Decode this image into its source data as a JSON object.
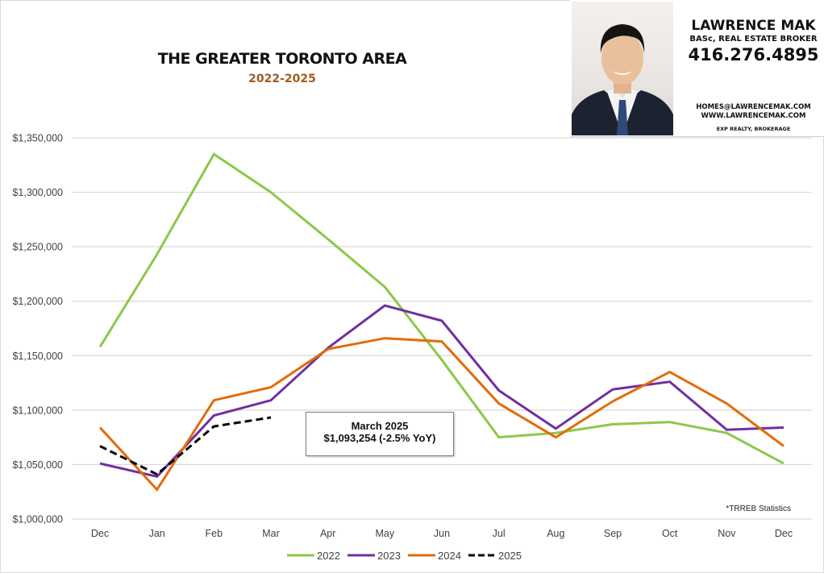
{
  "header": {
    "title": "THE GREATER TORONTO AREA",
    "subtitle": "2022-2025"
  },
  "agent_card": {
    "photo": "agent-headshot",
    "name": "LAWRENCE MAK",
    "credentials": "BASc, REAL ESTATE BROKER",
    "phone": "416.276.4895",
    "email": "HOMES@LAWRENCEMAK.COM",
    "website": "WWW.LAWRENCEMAK.COM",
    "brokerage": "EXP REALTY, BROKERAGE"
  },
  "annotation": {
    "line1": "March 2025",
    "line2": "$1,093,254 (-2.5% YoY)"
  },
  "source_note": "*TRREB Statistics",
  "chart_data": {
    "type": "line",
    "title": "THE GREATER TORONTO AREA",
    "subtitle": "2022-2025",
    "xlabel": "",
    "ylabel": "",
    "categories": [
      "Dec",
      "Jan",
      "Feb",
      "Mar",
      "Apr",
      "May",
      "Jun",
      "Jul",
      "Aug",
      "Sep",
      "Oct",
      "Nov",
      "Dec"
    ],
    "ylim": [
      1000000,
      1350000
    ],
    "yticks": [
      1000000,
      1050000,
      1100000,
      1150000,
      1200000,
      1250000,
      1300000,
      1350000
    ],
    "ytick_labels": [
      "$1,000,000",
      "$1,050,000",
      "$1,100,000",
      "$1,150,000",
      "$1,200,000",
      "$1,250,000",
      "$1,300,000",
      "$1,350,000"
    ],
    "grid": true,
    "legend_position": "bottom",
    "series": [
      {
        "name": "2022",
        "color": "#8cc84b",
        "dash": false,
        "values": [
          1158000,
          1243000,
          1335000,
          1300000,
          1257000,
          1213000,
          1146000,
          1075000,
          1079000,
          1087000,
          1089000,
          1079000,
          1051000
        ]
      },
      {
        "name": "2023",
        "color": "#7030a0",
        "dash": false,
        "values": [
          1051000,
          1039000,
          1095000,
          1109000,
          1157000,
          1196000,
          1182000,
          1118000,
          1083000,
          1119000,
          1126000,
          1082000,
          1084000
        ]
      },
      {
        "name": "2024",
        "color": "#e36c0a",
        "dash": false,
        "values": [
          1084000,
          1027000,
          1109000,
          1121000,
          1156000,
          1166000,
          1163000,
          1106000,
          1075000,
          1108000,
          1135000,
          1106000,
          1067000
        ]
      },
      {
        "name": "2025",
        "color": "#000000",
        "dash": true,
        "values": [
          1067000,
          1041000,
          1085000,
          1093254
        ]
      }
    ],
    "annotations": [
      "March 2025",
      "$1,093,254 (-2.5% YoY)"
    ],
    "source": "*TRREB Statistics"
  }
}
